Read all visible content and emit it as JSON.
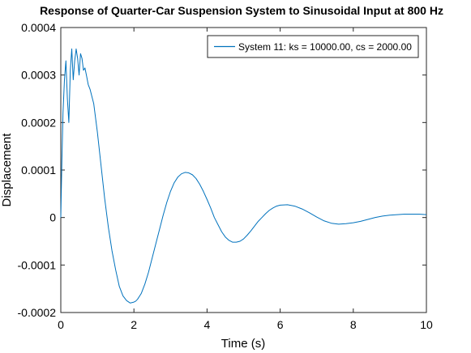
{
  "chart_data": {
    "type": "line",
    "title": "Response of Quarter-Car Suspension System to Sinusoidal Input at 800 Hz",
    "xlabel": "Time (s)",
    "ylabel": "Displacement",
    "xlim": [
      0,
      10
    ],
    "ylim": [
      -0.0002,
      0.0004
    ],
    "x_ticks": [
      0,
      2,
      4,
      6,
      8,
      10
    ],
    "x_tick_labels": [
      "0",
      "2",
      "4",
      "6",
      "8",
      "10"
    ],
    "y_ticks": [
      -0.0002,
      -0.0001,
      0,
      0.0001,
      0.0002,
      0.0003,
      0.0004
    ],
    "y_tick_labels": [
      "-0.0002",
      "-0.0001",
      "0",
      "0.0001",
      "0.0002",
      "0.0003",
      "0.0004"
    ],
    "grid": false,
    "legend_position": "top-right",
    "series": [
      {
        "name": "System 11: ks = 10000.00, cs = 2000.00",
        "color": "#0072bd",
        "x": [
          0.0,
          0.03,
          0.06,
          0.1,
          0.14,
          0.18,
          0.22,
          0.26,
          0.3,
          0.34,
          0.38,
          0.42,
          0.46,
          0.5,
          0.54,
          0.58,
          0.62,
          0.66,
          0.7,
          0.75,
          0.8,
          0.85,
          0.9,
          1.0,
          1.1,
          1.2,
          1.3,
          1.4,
          1.5,
          1.6,
          1.7,
          1.8,
          1.9,
          2.0,
          2.05,
          2.1,
          2.2,
          2.3,
          2.4,
          2.5,
          2.6,
          2.7,
          2.8,
          2.9,
          3.0,
          3.1,
          3.2,
          3.3,
          3.4,
          3.5,
          3.6,
          3.7,
          3.8,
          3.9,
          4.0,
          4.1,
          4.2,
          4.3,
          4.4,
          4.5,
          4.6,
          4.7,
          4.8,
          4.9,
          5.0,
          5.1,
          5.2,
          5.3,
          5.4,
          5.5,
          5.6,
          5.7,
          5.8,
          5.9,
          6.0,
          6.2,
          6.4,
          6.6,
          6.8,
          7.0,
          7.2,
          7.4,
          7.6,
          7.8,
          8.0,
          8.2,
          8.4,
          8.6,
          8.8,
          9.0,
          9.2,
          9.4,
          9.6,
          9.8,
          10.0
        ],
        "y": [
          0.0,
          0.00012,
          0.00022,
          0.00029,
          0.00033,
          0.00025,
          0.0002,
          0.00031,
          0.000355,
          0.00029,
          0.00033,
          0.000355,
          0.000335,
          0.0003,
          0.000345,
          0.000335,
          0.00031,
          0.000315,
          0.0003,
          0.00028,
          0.00027,
          0.000255,
          0.00024,
          0.00018,
          0.00011,
          4e-05,
          -2e-05,
          -7e-05,
          -0.00011,
          -0.000145,
          -0.000165,
          -0.000175,
          -0.00018,
          -0.000178,
          -0.000176,
          -0.000172,
          -0.00016,
          -0.00014,
          -0.000115,
          -8.5e-05,
          -5.5e-05,
          -2.5e-05,
          5e-06,
          3.2e-05,
          5.5e-05,
          7.3e-05,
          8.5e-05,
          9.2e-05,
          9.5e-05,
          9.4e-05,
          9e-05,
          8.2e-05,
          7e-05,
          5.5e-05,
          3.8e-05,
          2e-05,
          0.0,
          -1.5e-05,
          -3e-05,
          -4.1e-05,
          -4.8e-05,
          -5.2e-05,
          -5.2e-05,
          -5e-05,
          -4.5e-05,
          -3.7e-05,
          -2.8e-05,
          -1.8e-05,
          -8e-06,
          0.0,
          8e-06,
          1.5e-05,
          2e-05,
          2.4e-05,
          2.6e-05,
          2.7e-05,
          2.4e-05,
          1.8e-05,
          1e-05,
          1e-06,
          -7e-06,
          -1.2e-05,
          -1.4e-05,
          -1.3e-05,
          -1.1e-05,
          -8e-06,
          -4e-06,
          0.0,
          3e-06,
          5e-06,
          6e-06,
          7e-06,
          7e-06,
          7e-06,
          6e-06
        ]
      }
    ]
  }
}
